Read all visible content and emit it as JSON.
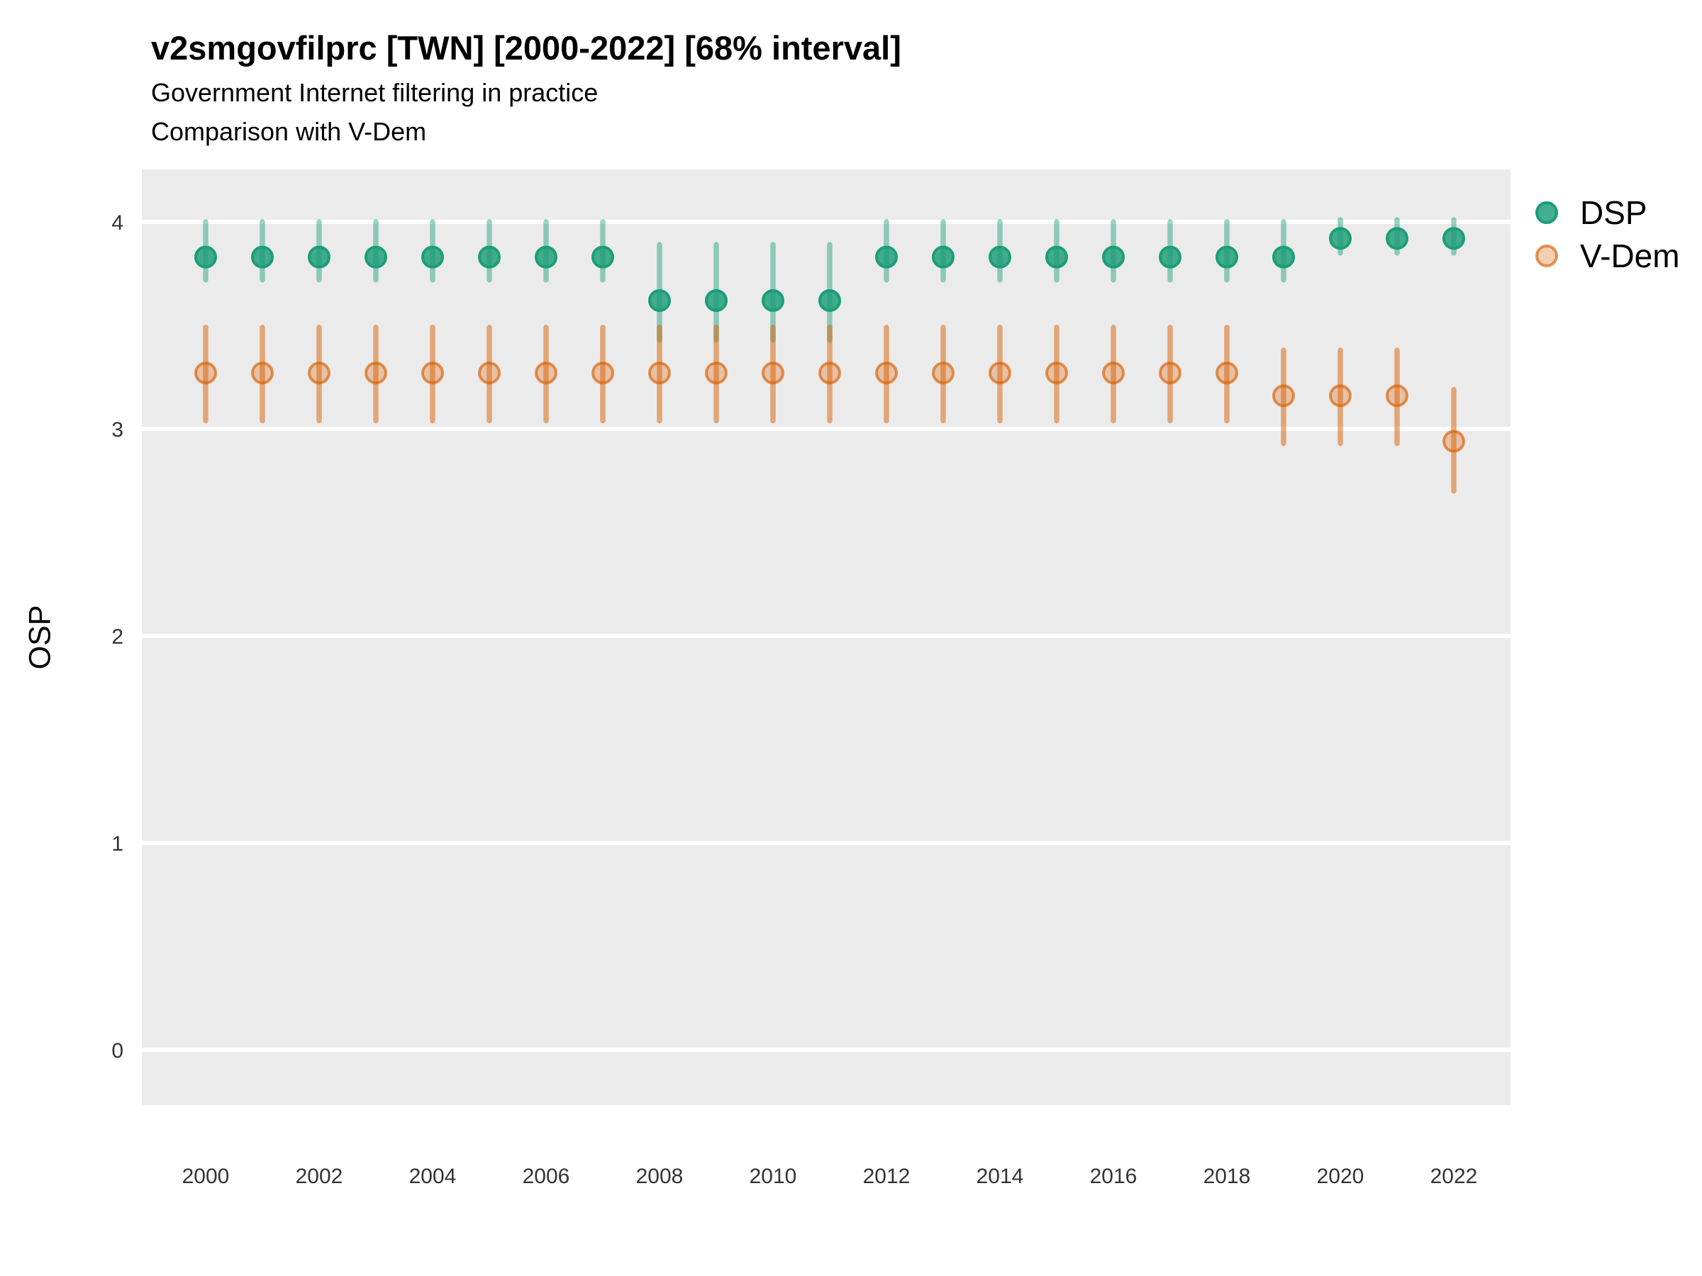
{
  "header": {
    "title": "v2smgovfilprc [TWN] [2000-2022] [68% interval]",
    "subtitle_line1": "Government Internet filtering in practice",
    "subtitle_line2": "Comparison with V-Dem"
  },
  "legend": {
    "items": [
      {
        "label": "DSP",
        "series": "dsp"
      },
      {
        "label": "V-Dem",
        "series": "vdem"
      }
    ]
  },
  "colors": {
    "dsp": "#1B9E77",
    "vdem": "#D95F02",
    "panel_bg": "#EBEBEB",
    "gridline": "#FFFFFF",
    "title_text": "#000000",
    "tick_text": "#333333"
  },
  "chart_data": {
    "type": "pointrange",
    "title": "v2smgovfilprc [TWN] [2000-2022] [68% interval]",
    "subtitle": [
      "Government Internet filtering in practice",
      "Comparison with V-Dem"
    ],
    "interval_note": "68% interval",
    "country": "TWN",
    "xlabel": "",
    "ylabel": "OSP",
    "ylim": [
      -0.27,
      4.25
    ],
    "y_ticks": [
      0,
      1,
      2,
      3,
      4
    ],
    "x_ticks": [
      2000,
      2002,
      2004,
      2006,
      2008,
      2010,
      2012,
      2014,
      2016,
      2018,
      2020,
      2022
    ],
    "grid": "major-horizontal-only",
    "legend_position": "right-top",
    "x": [
      2000,
      2001,
      2002,
      2003,
      2004,
      2005,
      2006,
      2007,
      2008,
      2009,
      2010,
      2011,
      2012,
      2013,
      2014,
      2015,
      2016,
      2017,
      2018,
      2019,
      2020,
      2021,
      2022
    ],
    "series": [
      {
        "name": "DSP",
        "key": "dsp",
        "values": [
          3.83,
          3.83,
          3.83,
          3.83,
          3.83,
          3.83,
          3.83,
          3.83,
          3.62,
          3.62,
          3.62,
          3.62,
          3.83,
          3.83,
          3.83,
          3.83,
          3.83,
          3.83,
          3.83,
          3.83,
          3.92,
          3.92,
          3.92
        ],
        "lower": [
          3.72,
          3.72,
          3.72,
          3.72,
          3.72,
          3.72,
          3.72,
          3.72,
          3.43,
          3.43,
          3.43,
          3.43,
          3.72,
          3.72,
          3.72,
          3.72,
          3.72,
          3.72,
          3.72,
          3.72,
          3.85,
          3.85,
          3.85
        ],
        "upper": [
          4.0,
          4.0,
          4.0,
          4.0,
          4.0,
          4.0,
          4.0,
          4.0,
          3.89,
          3.89,
          3.89,
          3.89,
          4.0,
          4.0,
          4.0,
          4.0,
          4.0,
          4.0,
          4.0,
          4.0,
          4.01,
          4.01,
          4.01
        ]
      },
      {
        "name": "V-Dem",
        "key": "vdem",
        "values": [
          3.27,
          3.27,
          3.27,
          3.27,
          3.27,
          3.27,
          3.27,
          3.27,
          3.27,
          3.27,
          3.27,
          3.27,
          3.27,
          3.27,
          3.27,
          3.27,
          3.27,
          3.27,
          3.27,
          3.16,
          3.16,
          3.16,
          2.94
        ],
        "lower": [
          3.04,
          3.04,
          3.04,
          3.04,
          3.04,
          3.04,
          3.04,
          3.04,
          3.04,
          3.04,
          3.04,
          3.04,
          3.04,
          3.04,
          3.04,
          3.04,
          3.04,
          3.04,
          3.04,
          2.93,
          2.93,
          2.93,
          2.7
        ],
        "upper": [
          3.49,
          3.49,
          3.49,
          3.49,
          3.49,
          3.49,
          3.49,
          3.49,
          3.49,
          3.49,
          3.49,
          3.49,
          3.49,
          3.49,
          3.49,
          3.49,
          3.49,
          3.49,
          3.49,
          3.38,
          3.38,
          3.38,
          3.19
        ]
      }
    ]
  }
}
